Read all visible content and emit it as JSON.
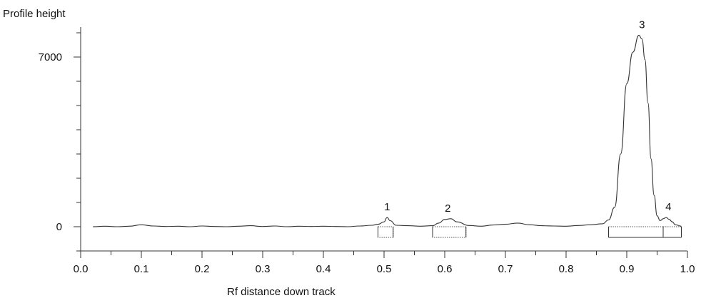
{
  "chart_data": {
    "type": "line",
    "title": "",
    "xlabel": "Rf distance down track",
    "ylabel": "Profile height",
    "xlim": [
      0.0,
      1.0
    ],
    "ylim": [
      -1000,
      8300
    ],
    "x_ticks": [
      "0.0",
      "0.1",
      "0.2",
      "0.3",
      "0.4",
      "0.5",
      "0.6",
      "0.7",
      "0.8",
      "0.9",
      "1.0"
    ],
    "y_ticks": [
      "0",
      "7000"
    ],
    "grid": false,
    "series": [
      {
        "x": [
          0.02,
          0.04,
          0.06,
          0.08,
          0.1,
          0.12,
          0.14,
          0.16,
          0.18,
          0.2,
          0.22,
          0.24,
          0.26,
          0.28,
          0.3,
          0.32,
          0.34,
          0.36,
          0.38,
          0.4,
          0.42,
          0.44,
          0.46,
          0.48,
          0.49,
          0.5,
          0.505,
          0.51,
          0.52,
          0.54,
          0.56,
          0.58,
          0.59,
          0.6,
          0.61,
          0.62,
          0.64,
          0.66,
          0.68,
          0.7,
          0.72,
          0.74,
          0.76,
          0.78,
          0.8,
          0.82,
          0.84,
          0.86,
          0.87,
          0.88,
          0.89,
          0.9,
          0.91,
          0.92,
          0.925,
          0.93,
          0.935,
          0.94,
          0.945,
          0.95,
          0.955,
          0.96,
          0.965,
          0.97,
          0.975,
          0.98,
          0.99
        ],
        "y": [
          0,
          20,
          0,
          20,
          80,
          30,
          10,
          20,
          0,
          30,
          10,
          0,
          20,
          40,
          10,
          30,
          0,
          20,
          10,
          20,
          10,
          0,
          30,
          60,
          100,
          200,
          380,
          250,
          60,
          40,
          20,
          40,
          150,
          300,
          330,
          200,
          50,
          20,
          70,
          100,
          150,
          80,
          40,
          30,
          20,
          50,
          80,
          120,
          280,
          800,
          3000,
          5900,
          7200,
          7900,
          7750,
          6900,
          5100,
          2800,
          1300,
          450,
          250,
          330,
          380,
          300,
          200,
          80,
          20
        ]
      }
    ],
    "peaks": [
      {
        "label": "1",
        "rf": 0.505,
        "height": 380
      },
      {
        "label": "2",
        "rf": 0.605,
        "height": 330
      },
      {
        "label": "3",
        "rf": 0.925,
        "height": 7900
      },
      {
        "label": "4",
        "rf": 0.965,
        "height": 380
      }
    ],
    "integration_ranges": [
      [
        0.49,
        0.515
      ],
      [
        0.58,
        0.635
      ],
      [
        0.87,
        0.96
      ],
      [
        0.96,
        0.99
      ]
    ],
    "colors": {
      "line": "#333333",
      "axis": "#333333",
      "baseline_fill": "#555555"
    }
  }
}
